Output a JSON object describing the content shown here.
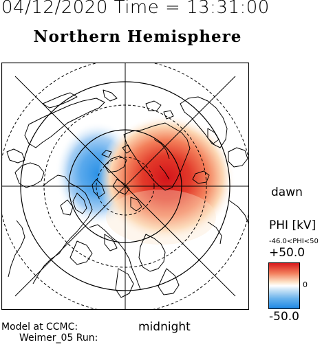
{
  "header": {
    "time_line": "04/12/2020 Time = 13:31:00",
    "title": "Northern Hemisphere"
  },
  "map": {
    "projection": "north-polar",
    "dawn_label": "dawn",
    "midnight_label": "midnight",
    "pattern": "two-cell potential: negative cell on dusk side, positive cell on dawn side",
    "colors": {
      "positive": "#d7191c",
      "negative": "#1e88e5",
      "coast": "#000000"
    }
  },
  "legend": {
    "title": "PHI [kV]",
    "range_text": "-46.0<PHI<50",
    "max_label": "+50.0",
    "zero_label": "0",
    "min_label": "-50.0"
  },
  "footer": {
    "model_label": "Model at CCMC:",
    "run_label": "Weimer_05 Run:"
  }
}
